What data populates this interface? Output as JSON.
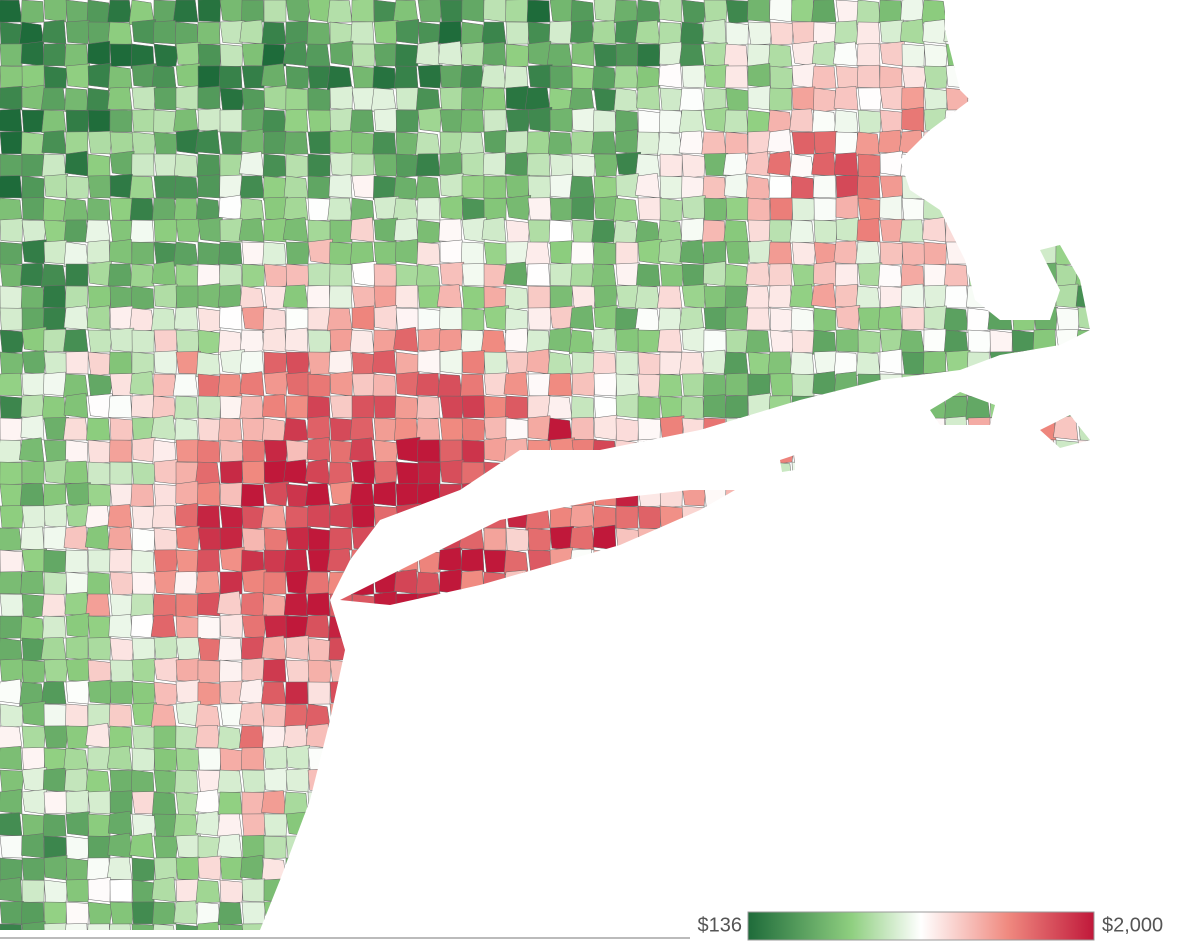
{
  "legend": {
    "min_label": "$136",
    "max_label": "$2,000"
  }
}
